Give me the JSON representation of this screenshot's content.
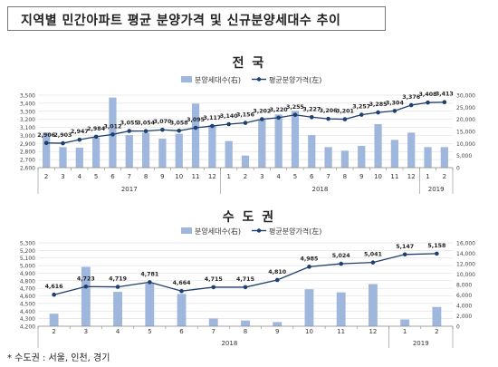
{
  "page_title": "지역별 민간아파트 평균 분양가격 및 신규분양세대수 추이",
  "footnote": "* 수도권 : 서울, 인천, 경기",
  "colors": {
    "bar": "#9fb7dc",
    "line": "#1f3f6e",
    "axis": "#888888"
  },
  "chart_data": [
    {
      "type": "bar+line",
      "title": "전 국",
      "legend": {
        "bar": "분양세대수(右)",
        "line": "평균분양가격(左)"
      },
      "categories": [
        "2",
        "3",
        "4",
        "5",
        "6",
        "7",
        "8",
        "9",
        "10",
        "11",
        "12",
        "1",
        "2",
        "3",
        "4",
        "5",
        "6",
        "7",
        "8",
        "9",
        "10",
        "11",
        "12",
        "1",
        "2"
      ],
      "year_labels": [
        {
          "label": "2017",
          "center_index": 5
        },
        {
          "label": "2018",
          "center_index": 16.5
        },
        {
          "label": "2019",
          "center_index": 23.5
        }
      ],
      "line_values": [
        2906,
        2903,
        2947,
        2984,
        3012,
        3055,
        3054,
        3070,
        3058,
        3095,
        3117,
        3140,
        3156,
        3202,
        3220,
        3255,
        3227,
        3206,
        3201,
        3257,
        3285,
        3304,
        3376,
        3408,
        3413
      ],
      "line_labels": [
        "2,906",
        "2,903",
        "2,947",
        "2,984",
        "3,012",
        "3,055",
        "3,054",
        "3,070",
        "3,058",
        "3,095",
        "3,117",
        "3,140",
        "3,156",
        "3,202",
        "3,220",
        "3,255",
        "3,227",
        "3,206",
        "3,201",
        "3,257",
        "3,285",
        "3,304",
        "3,376",
        "3,408",
        "3,413"
      ],
      "bar_values": [
        14500,
        8500,
        8300,
        12500,
        29000,
        13500,
        14500,
        12000,
        14000,
        26500,
        17500,
        11000,
        5000,
        20000,
        22000,
        23500,
        13500,
        8500,
        7000,
        9000,
        18000,
        11500,
        14500,
        8500,
        8500
      ],
      "left_axis": {
        "min": 2600,
        "max": 3500,
        "ticks": [
          "2,600",
          "2,700",
          "2,800",
          "2,900",
          "3,000",
          "3,100",
          "3,200",
          "3,300",
          "3,400",
          "3,500"
        ]
      },
      "right_axis": {
        "min": 0,
        "max": 30000,
        "ticks": [
          "0",
          "5,000",
          "10,000",
          "15,000",
          "20,000",
          "25,000",
          "30,000"
        ]
      },
      "grid": true
    },
    {
      "type": "bar+line",
      "title": "수 도 권",
      "legend": {
        "bar": "분양세대수(右)",
        "line": "평균분양가격(左)"
      },
      "categories": [
        "2",
        "3",
        "4",
        "5",
        "6",
        "7",
        "8",
        "9",
        "10",
        "11",
        "12",
        "1",
        "2"
      ],
      "year_labels": [
        {
          "label": "2018",
          "center_index": 5.5
        },
        {
          "label": "2019",
          "center_index": 11.5
        }
      ],
      "line_values": [
        4616,
        4723,
        4719,
        4781,
        4664,
        4715,
        4715,
        4810,
        4985,
        5024,
        5041,
        5147,
        5158
      ],
      "line_labels": [
        "4,616",
        "4,723",
        "4,719",
        "4,781",
        "4,664",
        "4,715",
        "4,715",
        "4,810",
        "4,985",
        "5,024",
        "5,041",
        "5,147",
        "5,158"
      ],
      "bar_values": [
        2400,
        11400,
        6600,
        8200,
        6200,
        1500,
        1100,
        800,
        7100,
        6500,
        8100,
        1300,
        3700
      ],
      "left_axis": {
        "min": 4200,
        "max": 5300,
        "ticks": [
          "4,200",
          "4,300",
          "4,400",
          "4,500",
          "4,600",
          "4,700",
          "4,800",
          "4,900",
          "5,000",
          "5,100",
          "5,200",
          "5,300"
        ]
      },
      "right_axis": {
        "min": 0,
        "max": 16000,
        "ticks": [
          "0",
          "2,000",
          "4,000",
          "6,000",
          "8,000",
          "10,000",
          "12,000",
          "14,000",
          "16,000"
        ]
      },
      "grid": true
    }
  ]
}
